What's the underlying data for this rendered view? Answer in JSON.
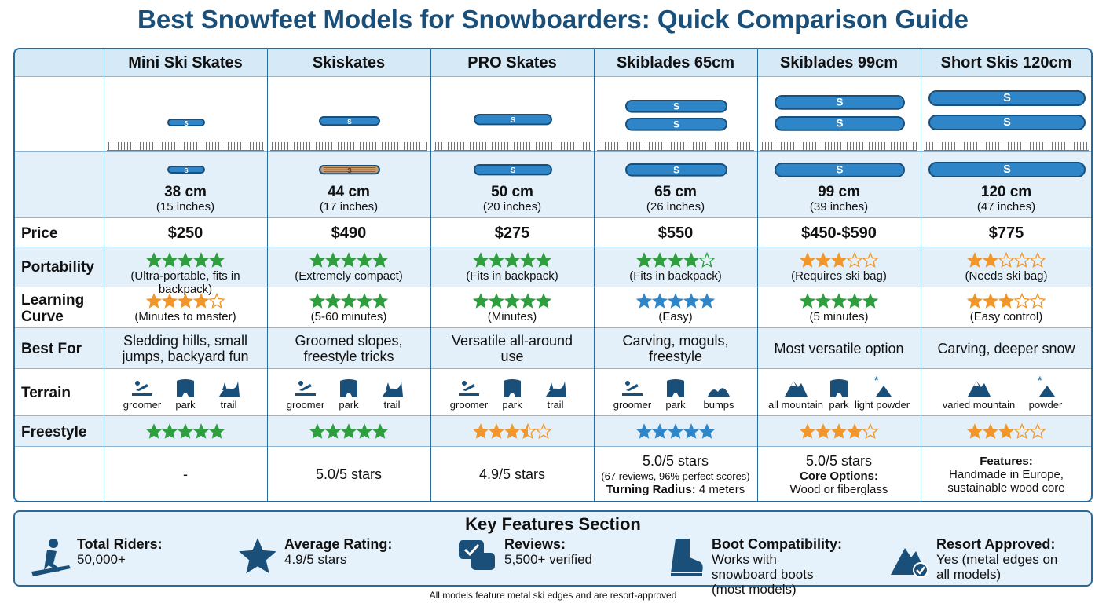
{
  "title": "Best Snowfeet Models for Snowboarders: Quick Comparison Guide",
  "columns": [
    "Mini Ski Skates",
    "Skiskates",
    "PRO Skates",
    "Skiblades 65cm",
    "Skiblades 99cm",
    "Short Skis 120cm"
  ],
  "sizes": [
    [
      "38 cm",
      "(15 inches)"
    ],
    [
      "44 cm",
      "(17 inches)"
    ],
    [
      "50 cm",
      "(20 inches)"
    ],
    [
      "65 cm",
      "(26 inches)"
    ],
    [
      "99 cm",
      "(39 inches)"
    ],
    [
      "120 cm",
      "(47 inches)"
    ]
  ],
  "price": {
    "label": "Price",
    "values": [
      "$250",
      "$490",
      "$275",
      "$550",
      "$450-$590",
      "$775"
    ]
  },
  "portability": {
    "label": "Portability",
    "stars": [
      5,
      5,
      5,
      4,
      3,
      2
    ],
    "colors": [
      "#2e9e3e",
      "#2e9e3e",
      "#2e9e3e",
      "#2e9e3e",
      "#f0962a",
      "#f0962a"
    ],
    "notes": [
      "(Ultra-portable, fits in backpack)",
      "(Extremely compact)",
      "(Fits in backpack)",
      "(Fits in backpack)",
      "(Requires ski bag)",
      "(Needs ski bag)"
    ]
  },
  "learning_curve": {
    "label": "Learning Curve",
    "stars": [
      4,
      5,
      5,
      5,
      5,
      3
    ],
    "colors": [
      "#f0962a",
      "#2e9e3e",
      "#2e9e3e",
      "#2e86c8",
      "#2e9e3e",
      "#f0962a"
    ],
    "notes": [
      "(Minutes to master)",
      "(5-60 minutes)",
      "(Minutes)",
      "(Easy)",
      "(5 minutes)",
      "(Easy control)"
    ]
  },
  "best_for": {
    "label": "Best For",
    "values": [
      "Sledding hills, small jumps, backyard fun",
      "Groomed slopes, freestyle tricks",
      "Versatile all-around use",
      "Carving, moguls, freestyle",
      "Most versatile option",
      "Carving, deeper snow"
    ]
  },
  "terrain": {
    "label": "Terrain",
    "items": [
      [
        "groomer",
        "park",
        "trail"
      ],
      [
        "groomer",
        "park",
        "trail"
      ],
      [
        "groomer",
        "park",
        "trail"
      ],
      [
        "groomer",
        "park",
        "bumps"
      ],
      [
        "all mountain",
        "park",
        "light powder"
      ],
      [
        "varied mountain",
        "powder"
      ]
    ]
  },
  "freestyle": {
    "label": "Freestyle",
    "stars": [
      5,
      5,
      3.5,
      5,
      4,
      3
    ],
    "colors": [
      "#2e9e3e",
      "#2e9e3e",
      "#f0962a",
      "#2e86c8",
      "#f0962a",
      "#f0962a"
    ]
  },
  "extras": [
    [
      {
        "text": "-"
      }
    ],
    [
      {
        "text": "5.0/5 stars"
      }
    ],
    [
      {
        "text": "4.9/5 stars"
      }
    ],
    [
      {
        "text": "5.0/5 stars"
      },
      {
        "text": "(67 reviews, 96% perfect scores)"
      },
      {
        "bold": "Turning Radius:",
        "text": "4 meters"
      }
    ],
    [
      {
        "text": "5.0/5 stars"
      },
      {
        "bold": "Core Options:"
      },
      {
        "text": "Wood or fiberglass"
      }
    ],
    [
      {
        "bold": "Features:"
      },
      {
        "text": "Handmade in Europe, sustainable wood core"
      }
    ]
  ],
  "key_features": {
    "title": "Key Features Section",
    "items": [
      {
        "label": "Total Riders:",
        "value": "50,000+"
      },
      {
        "label": "Average Rating:",
        "value": "4.9/5 stars"
      },
      {
        "label": "Reviews:",
        "value": "5,500+ verified"
      },
      {
        "label": "Boot Compatibility:",
        "value": "Works with snowboard boots (most models)"
      },
      {
        "label": "Resort Approved:",
        "value": "Yes (metal edges on all models)"
      }
    ]
  },
  "footnote": "All models feature metal ski edges and are resort-approved"
}
